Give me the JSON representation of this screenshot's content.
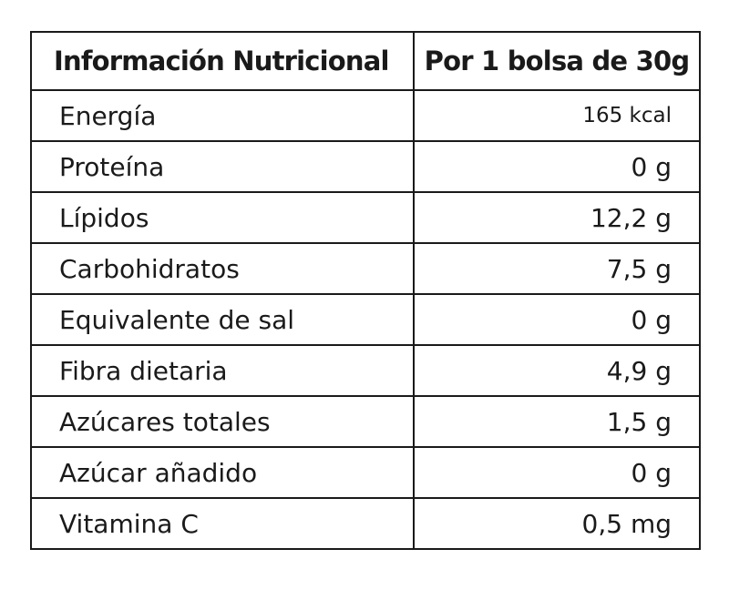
{
  "table": {
    "header": {
      "name_col": "Información Nutricional",
      "value_col": "Por 1 bolsa de 30g"
    },
    "rows": [
      {
        "nutrient": "Energía",
        "amount": "165 kcal"
      },
      {
        "nutrient": "Proteína",
        "amount": "0 g"
      },
      {
        "nutrient": "Lípidos",
        "amount": "12,2 g"
      },
      {
        "nutrient": "Carbohidratos",
        "amount": "7,5 g"
      },
      {
        "nutrient": "Equivalente de sal",
        "amount": "0 g"
      },
      {
        "nutrient": "Fibra dietaria",
        "amount": "4,9 g"
      },
      {
        "nutrient": "Azúcares totales",
        "amount": "1,5 g"
      },
      {
        "nutrient": "Azúcar añadido",
        "amount": "0 g"
      },
      {
        "nutrient": "Vitamina C",
        "amount": "0,5 mg"
      }
    ]
  }
}
